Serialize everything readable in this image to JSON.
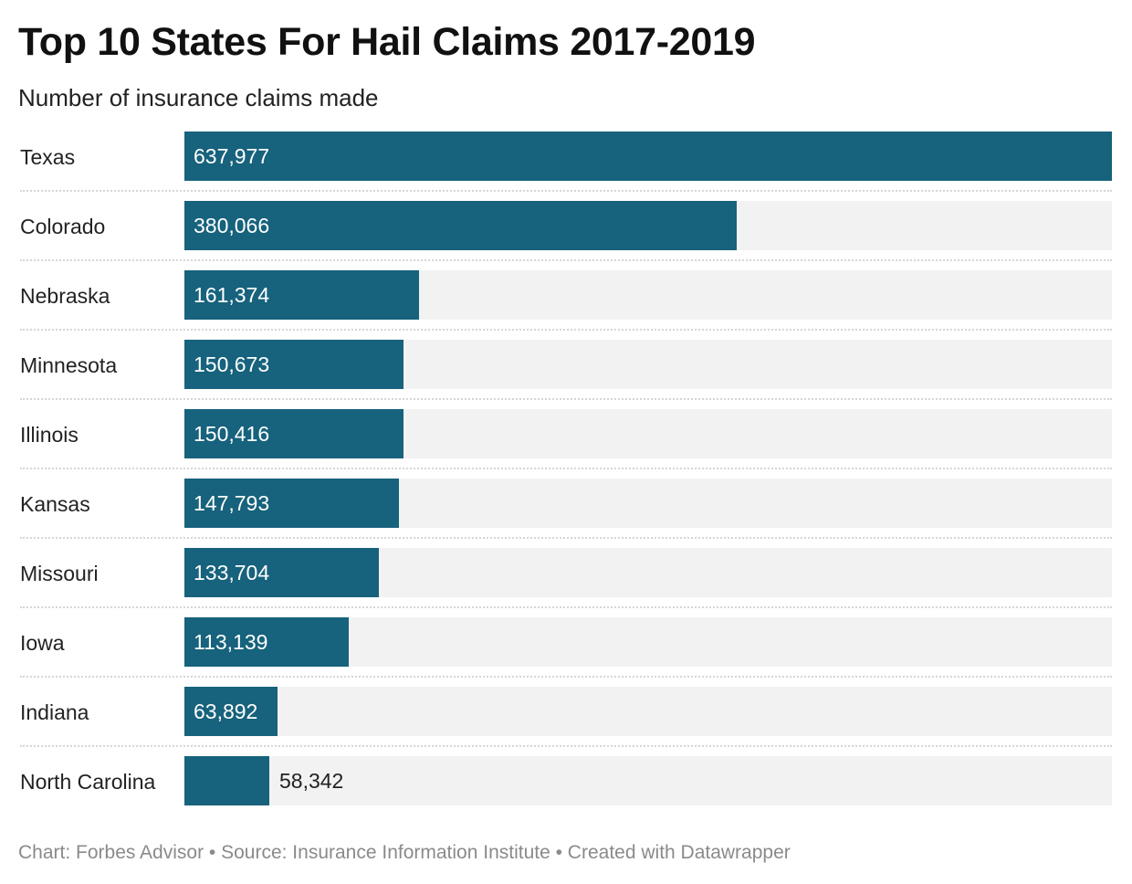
{
  "header": {
    "title": "Top 10 States For Hail Claims 2017-2019",
    "subtitle": "Number of insurance claims made"
  },
  "footer": {
    "credit": "Chart: Forbes Advisor • Source: Insurance Information Institute • Created with Datawrapper"
  },
  "colors": {
    "bar": "#17627c",
    "track": "#f2f2f2",
    "divider": "#d6d6d6"
  },
  "chart_data": {
    "type": "bar",
    "orientation": "horizontal",
    "title": "Top 10 States For Hail Claims 2017-2019",
    "subtitle": "Number of insurance claims made",
    "categories": [
      "Texas",
      "Colorado",
      "Nebraska",
      "Minnesota",
      "Illinois",
      "Kansas",
      "Missouri",
      "Iowa",
      "Indiana",
      "North Carolina"
    ],
    "values": [
      637977,
      380066,
      161374,
      150673,
      150416,
      147793,
      133704,
      113139,
      63892,
      58342
    ],
    "value_labels": [
      "637,977",
      "380,066",
      "161,374",
      "150,673",
      "150,416",
      "147,793",
      "133,704",
      "113,139",
      "63,892",
      "58,342"
    ],
    "xlim": [
      0,
      637977
    ],
    "grid": false,
    "legend": "none"
  }
}
